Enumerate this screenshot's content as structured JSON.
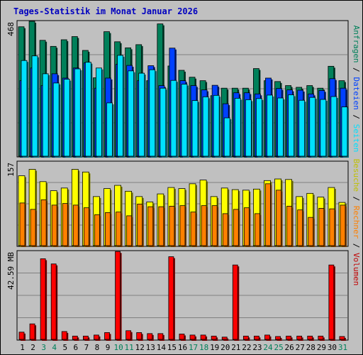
{
  "title": "Tages-Statistik im Monat Januar 2026",
  "colors": {
    "background": "#c0c0c0",
    "grid": "#808080",
    "anfragen": "#00805a",
    "dateien": "#0040ff",
    "seiten": "#00e0ff",
    "besuche": "#ffff00",
    "rechner": "#ff8000",
    "volumen": "#ff0000",
    "weekend_label": "#00805a",
    "weekday_label": "#000000"
  },
  "chart_data": [
    {
      "type": "bar",
      "panel": "requests",
      "ytick_label": "468",
      "ylim": [
        0,
        468
      ],
      "categories": [
        "1",
        "2",
        "3",
        "4",
        "5",
        "6",
        "7",
        "8",
        "9",
        "10",
        "11",
        "12",
        "13",
        "14",
        "15",
        "16",
        "17",
        "18",
        "19",
        "20",
        "21",
        "22",
        "23",
        "24",
        "25",
        "26",
        "27",
        "28",
        "29",
        "30",
        "31"
      ],
      "weekend_days": [
        "3",
        "4",
        "10",
        "11",
        "17",
        "18",
        "24",
        "25",
        "31"
      ],
      "right_labels": [
        "Anfragen",
        "Dateien",
        "Seiten"
      ],
      "series": [
        {
          "name": "Anfragen",
          "values": [
            449,
            468,
            402,
            381,
            404,
            415,
            367,
            272,
            432,
            397,
            376,
            387,
            262,
            459,
            313,
            298,
            274,
            262,
            210,
            236,
            236,
            236,
            304,
            262,
            259,
            245,
            239,
            245,
            236,
            312,
            262
          ]
        },
        {
          "name": "Dateien",
          "values": [
            262,
            306,
            245,
            286,
            271,
            306,
            324,
            236,
            271,
            319,
            315,
            262,
            314,
            245,
            375,
            262,
            245,
            230,
            246,
            182,
            220,
            220,
            216,
            271,
            235,
            230,
            229,
            216,
            228,
            269,
            236
          ]
        },
        {
          "name": "Seiten",
          "values": [
            332,
            348,
            286,
            254,
            267,
            303,
            326,
            306,
            185,
            350,
            296,
            288,
            300,
            236,
            263,
            250,
            193,
            206,
            211,
            133,
            201,
            196,
            200,
            212,
            202,
            213,
            194,
            204,
            197,
            207,
            171
          ]
        }
      ]
    },
    {
      "type": "bar",
      "panel": "visits",
      "ytick_label": "157",
      "ylim": [
        0,
        157
      ],
      "categories": [
        "1",
        "2",
        "3",
        "4",
        "5",
        "6",
        "7",
        "8",
        "9",
        "10",
        "11",
        "12",
        "13",
        "14",
        "15",
        "16",
        "17",
        "18",
        "19",
        "20",
        "21",
        "22",
        "23",
        "24",
        "25",
        "26",
        "27",
        "28",
        "29",
        "30",
        "31"
      ],
      "right_labels": [
        "Besuche",
        "Rechner",
        "Volumen"
      ],
      "series": [
        {
          "name": "Besuche",
          "values": [
            131,
            143,
            120,
            103,
            108,
            143,
            138,
            92,
            107,
            113,
            102,
            92,
            82,
            97,
            109,
            107,
            116,
            123,
            92,
            108,
            105,
            104,
            106,
            122,
            125,
            124,
            92,
            98,
            91,
            109,
            81
          ]
        },
        {
          "name": "Rechner",
          "values": [
            80,
            68,
            86,
            76,
            79,
            76,
            71,
            58,
            62,
            63,
            56,
            78,
            73,
            73,
            74,
            75,
            63,
            75,
            75,
            60,
            68,
            71,
            60,
            116,
            104,
            74,
            67,
            53,
            70,
            69,
            76
          ]
        }
      ]
    },
    {
      "type": "bar",
      "panel": "volume",
      "ytick_label": "42.59 MB",
      "ylim": [
        0,
        42.59
      ],
      "categories": [
        "1",
        "2",
        "3",
        "4",
        "5",
        "6",
        "7",
        "8",
        "9",
        "10",
        "11",
        "12",
        "13",
        "14",
        "15",
        "16",
        "17",
        "18",
        "19",
        "20",
        "21",
        "22",
        "23",
        "24",
        "25",
        "26",
        "27",
        "28",
        "29",
        "30",
        "31"
      ],
      "series": [
        {
          "name": "Volumen",
          "values": [
            3.5,
            7.5,
            39.0,
            36.5,
            3.8,
            1.6,
            1.6,
            2.1,
            3.3,
            42.5,
            4.2,
            3.3,
            2.8,
            2.8,
            40.0,
            2.6,
            2.1,
            2.1,
            1.6,
            1.1,
            36.0,
            1.6,
            1.6,
            2.1,
            1.4,
            1.6,
            1.6,
            1.6,
            1.6,
            36.0,
            1.4
          ]
        }
      ]
    }
  ]
}
